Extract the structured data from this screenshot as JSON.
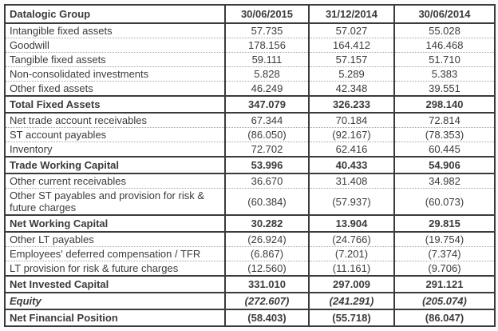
{
  "chart_data": {
    "type": "table",
    "title_cell": "Datalogic Group",
    "columns": [
      "30/06/2015",
      "31/12/2014",
      "30/06/2014"
    ],
    "rows": [
      {
        "label": "Intangible fixed assets",
        "values": [
          "57.735",
          "57.027",
          "55.028"
        ],
        "style": "normal"
      },
      {
        "label": "Goodwill",
        "values": [
          "178.156",
          "164.412",
          "146.468"
        ],
        "style": "normal"
      },
      {
        "label": "Tangible fixed assets",
        "values": [
          "59.111",
          "57.157",
          "51.710"
        ],
        "style": "normal"
      },
      {
        "label": "Non-consolidated investments",
        "values": [
          "5.828",
          "5.289",
          "5.383"
        ],
        "style": "normal"
      },
      {
        "label": "Other fixed assets",
        "values": [
          "46.249",
          "42.348",
          "39.551"
        ],
        "style": "normal"
      },
      {
        "label": "Total Fixed Assets",
        "values": [
          "347.079",
          "326.233",
          "298.140"
        ],
        "style": "total"
      },
      {
        "label": "Net trade account receivables",
        "values": [
          "67.344",
          "70.184",
          "72.814"
        ],
        "style": "normal"
      },
      {
        "label": "ST account payables",
        "values": [
          "(86.050)",
          "(92.167)",
          "(78.353)"
        ],
        "style": "normal"
      },
      {
        "label": "Inventory",
        "values": [
          "72.702",
          "62.416",
          "60.445"
        ],
        "style": "normal"
      },
      {
        "label": "Trade Working Capital",
        "values": [
          "53.996",
          "40.433",
          "54.906"
        ],
        "style": "total"
      },
      {
        "label": "Other current receivables",
        "values": [
          "36.670",
          "31.408",
          "34.982"
        ],
        "style": "normal"
      },
      {
        "label": "Other ST payables and provision for risk & future charges",
        "values": [
          "(60.384)",
          "(57.937)",
          "(60.073)"
        ],
        "style": "normal"
      },
      {
        "label": "Net Working Capital",
        "values": [
          "30.282",
          "13.904",
          "29.815"
        ],
        "style": "total"
      },
      {
        "label": "Other LT payables",
        "values": [
          "(26.924)",
          "(24.766)",
          "(19.754)"
        ],
        "style": "normal"
      },
      {
        "label": "Employees' deferred compensation / TFR",
        "values": [
          "(6.867)",
          "(7.201)",
          "(7.374)"
        ],
        "style": "normal"
      },
      {
        "label": "LT provision for risk & future charges",
        "values": [
          "(12.560)",
          "(11.161)",
          "(9.706)"
        ],
        "style": "normal"
      },
      {
        "label": "Net Invested Capital",
        "values": [
          "331.010",
          "297.009",
          "291.121"
        ],
        "style": "total"
      },
      {
        "label": "Equity",
        "values": [
          "(272.607)",
          "(241.291)",
          "(205.074)"
        ],
        "style": "total-italic"
      },
      {
        "label": "Net Financial Position",
        "values": [
          "(58.403)",
          "(55.718)",
          "(86.047)"
        ],
        "style": "total"
      }
    ],
    "layout": {
      "grid": "bordered",
      "normal_row_separator": "dotted",
      "total_row_separator": "solid"
    }
  },
  "colors": {
    "text": "#3b3b3b",
    "border_dark": "#3b3b3b",
    "border_dotted": "#a3a3a3",
    "table_background": "#ffffff",
    "page_background": "#fbfbfb"
  }
}
